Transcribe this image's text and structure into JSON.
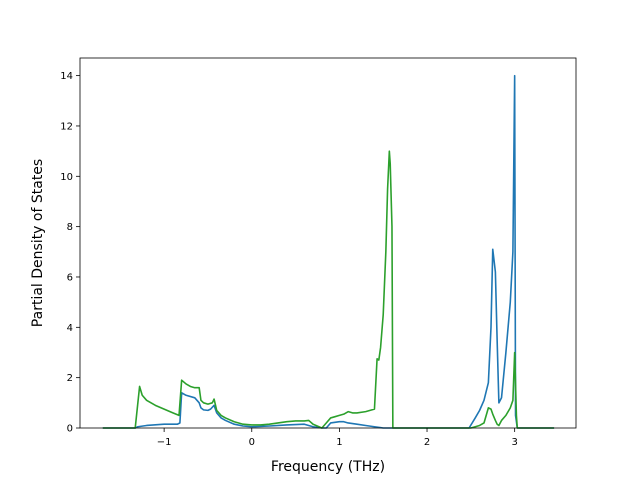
{
  "chart_data": {
    "type": "line",
    "title": "",
    "xlabel": "Frequency (THz)",
    "ylabel": "Partial Density of States",
    "xlim": [
      -1.96,
      3.7
    ],
    "ylim": [
      0,
      14.7
    ],
    "xticks": [
      -1,
      0,
      1,
      2,
      3
    ],
    "xtick_labels": [
      "−1",
      "0",
      "1",
      "2",
      "3"
    ],
    "yticks": [
      0,
      2,
      4,
      6,
      8,
      10,
      12,
      14
    ],
    "ytick_labels": [
      "0",
      "2",
      "4",
      "6",
      "8",
      "10",
      "12",
      "14"
    ],
    "grid": false,
    "legend": "none",
    "series": [
      {
        "color": "#1f77b4",
        "x": [
          -1.7,
          -1.5,
          -1.33,
          -1.3,
          -1.2,
          -1.0,
          -0.85,
          -0.82,
          -0.8,
          -0.75,
          -0.65,
          -0.6,
          -0.58,
          -0.55,
          -0.5,
          -0.47,
          -0.43,
          -0.4,
          -0.35,
          -0.3,
          -0.2,
          -0.1,
          0,
          0.2,
          0.4,
          0.6,
          0.65,
          0.7,
          0.8,
          0.85,
          0.9,
          1.0,
          1.05,
          1.1,
          1.2,
          1.3,
          1.4,
          1.5,
          1.55,
          1.58,
          1.6,
          1.65,
          1.8,
          2.0,
          2.2,
          2.48,
          2.55,
          2.6,
          2.65,
          2.7,
          2.73,
          2.75,
          2.78,
          2.8,
          2.82,
          2.85,
          2.9,
          2.95,
          2.98,
          3.0,
          3.01,
          3.03,
          3.1,
          3.3,
          3.45
        ],
        "y": [
          0,
          0,
          0,
          0.05,
          0.1,
          0.15,
          0.15,
          0.2,
          1.4,
          1.3,
          1.2,
          1.0,
          0.8,
          0.72,
          0.7,
          0.75,
          0.9,
          0.6,
          0.4,
          0.3,
          0.15,
          0.08,
          0.05,
          0.08,
          0.12,
          0.15,
          0.1,
          0.05,
          0,
          0,
          0.2,
          0.25,
          0.25,
          0.2,
          0.15,
          0.1,
          0.05,
          0,
          0,
          0,
          0,
          0,
          0,
          0,
          0,
          0,
          0.4,
          0.7,
          1.1,
          1.8,
          4.0,
          7.1,
          6.2,
          3.5,
          1.0,
          1.2,
          3.0,
          5.0,
          7.0,
          14.0,
          0.5,
          0,
          0,
          0,
          0
        ]
      },
      {
        "color": "#2ca02c",
        "x": [
          -1.7,
          -1.5,
          -1.33,
          -1.28,
          -1.25,
          -1.2,
          -1.1,
          -1.0,
          -0.9,
          -0.83,
          -0.8,
          -0.75,
          -0.7,
          -0.65,
          -0.6,
          -0.58,
          -0.55,
          -0.5,
          -0.45,
          -0.43,
          -0.4,
          -0.35,
          -0.3,
          -0.2,
          -0.1,
          0,
          0.1,
          0.2,
          0.3,
          0.4,
          0.5,
          0.6,
          0.65,
          0.7,
          0.8,
          0.85,
          0.9,
          0.95,
          1.0,
          1.05,
          1.1,
          1.15,
          1.2,
          1.3,
          1.4,
          1.43,
          1.45,
          1.47,
          1.5,
          1.53,
          1.55,
          1.57,
          1.58,
          1.6,
          1.61,
          1.63,
          1.7,
          2.0,
          2.3,
          2.5,
          2.6,
          2.65,
          2.7,
          2.73,
          2.75,
          2.78,
          2.8,
          2.82,
          2.85,
          2.9,
          2.95,
          2.98,
          3.0,
          3.02,
          3.03,
          3.1,
          3.3,
          3.45
        ],
        "y": [
          0,
          0,
          0,
          1.65,
          1.3,
          1.1,
          0.9,
          0.75,
          0.6,
          0.5,
          1.9,
          1.75,
          1.65,
          1.6,
          1.6,
          1.1,
          1.0,
          0.95,
          1.0,
          1.15,
          0.7,
          0.5,
          0.4,
          0.25,
          0.15,
          0.12,
          0.12,
          0.15,
          0.2,
          0.25,
          0.28,
          0.28,
          0.3,
          0.15,
          0,
          0.2,
          0.4,
          0.45,
          0.5,
          0.55,
          0.65,
          0.6,
          0.6,
          0.65,
          0.75,
          2.75,
          2.7,
          3.2,
          4.5,
          7.0,
          9.5,
          11.0,
          10.5,
          8.0,
          0,
          0,
          0,
          0,
          0,
          0,
          0.1,
          0.2,
          0.8,
          0.75,
          0.55,
          0.3,
          0.15,
          0.1,
          0.3,
          0.5,
          0.8,
          1.1,
          3.0,
          0.5,
          0,
          0,
          0,
          0
        ]
      }
    ]
  }
}
